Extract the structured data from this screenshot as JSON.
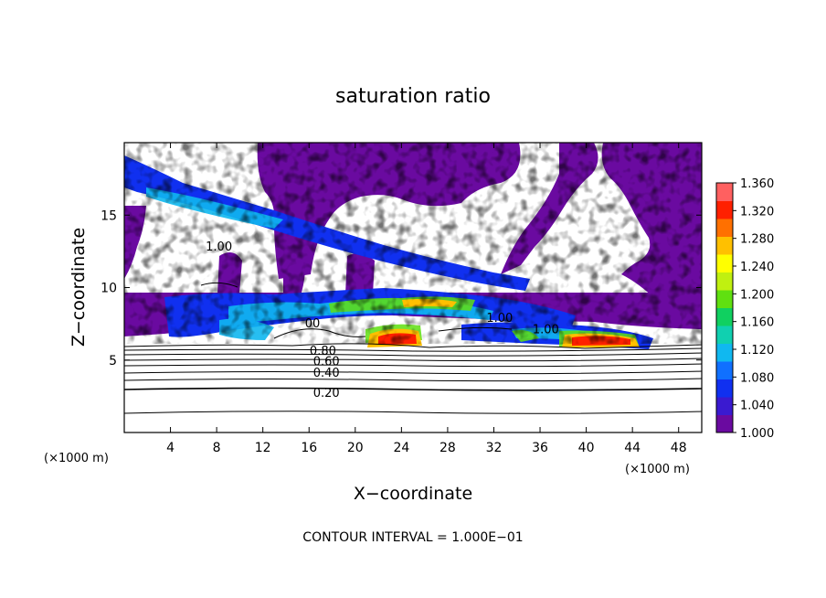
{
  "chart_data": {
    "type": "heatmap",
    "title": "saturation ratio",
    "xlabel": "X−coordinate",
    "ylabel": "Z−coordinate",
    "x_unit": "(×1000 m)",
    "x_unit_right": "(×1000 m)",
    "xlim": [
      0,
      50
    ],
    "ylim": [
      0,
      20
    ],
    "x_ticks": [
      4,
      8,
      12,
      16,
      20,
      24,
      28,
      32,
      36,
      40,
      44,
      48
    ],
    "y_ticks": [
      5,
      10,
      15
    ],
    "colorbar": {
      "min": 1.0,
      "max": 1.36,
      "ticks": [
        "1.360",
        "1.320",
        "1.280",
        "1.240",
        "1.200",
        "1.160",
        "1.120",
        "1.080",
        "1.040",
        "1.000"
      ],
      "colors": [
        "#6a0aa0",
        "#3a1ad0",
        "#1030f0",
        "#1070ff",
        "#10b8f0",
        "#10d0b0",
        "#10d060",
        "#60e010",
        "#c0f010",
        "#ffff00",
        "#ffc000",
        "#ff7000",
        "#ff2000",
        "#ff6060"
      ]
    },
    "contour_labels": [
      {
        "text": "0.20",
        "x": 17.5,
        "z": 2.7
      },
      {
        "text": "0.40",
        "x": 17.5,
        "z": 4.1
      },
      {
        "text": "0.60",
        "x": 17.5,
        "z": 4.9
      },
      {
        "text": "0.80",
        "x": 17.2,
        "z": 5.6
      },
      {
        "text": "00",
        "x": 16.3,
        "z": 7.5
      },
      {
        "text": "1.00",
        "x": 32.5,
        "z": 7.9
      },
      {
        "text": "1.00",
        "x": 36.5,
        "z": 7.1
      },
      {
        "text": "1.00",
        "x": 8.2,
        "z": 12.8
      }
    ],
    "contour_interval": "CONTOUR INTERVAL = 1.000E−01"
  }
}
